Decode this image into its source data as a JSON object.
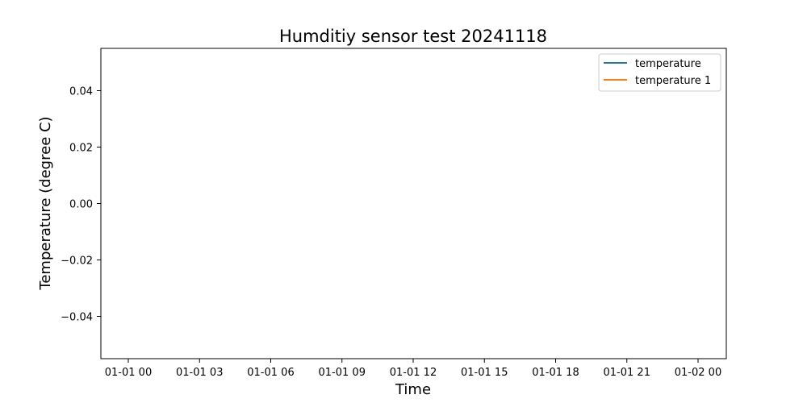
{
  "chart_data": {
    "type": "line",
    "title": "Humditiy sensor test 20241118",
    "xlabel": "Time",
    "ylabel": "Temperature (degree C)",
    "x_tick_labels": [
      "01-01 00",
      "01-01 03",
      "01-01 06",
      "01-01 09",
      "01-01 12",
      "01-01 15",
      "01-01 18",
      "01-01 21",
      "01-02 00"
    ],
    "y_ticks": [
      -0.04,
      -0.02,
      0.0,
      0.02,
      0.04
    ],
    "y_tick_labels": [
      "−0.04",
      "−0.02",
      "0.00",
      "0.02",
      "0.04"
    ],
    "ylim": [
      -0.055,
      0.055
    ],
    "grid": false,
    "legend_position": "top-right",
    "series": [
      {
        "name": "temperature",
        "color": "#1f77b4",
        "values": []
      },
      {
        "name": "temperature 1",
        "color": "#ff7f0e",
        "values": []
      }
    ]
  }
}
